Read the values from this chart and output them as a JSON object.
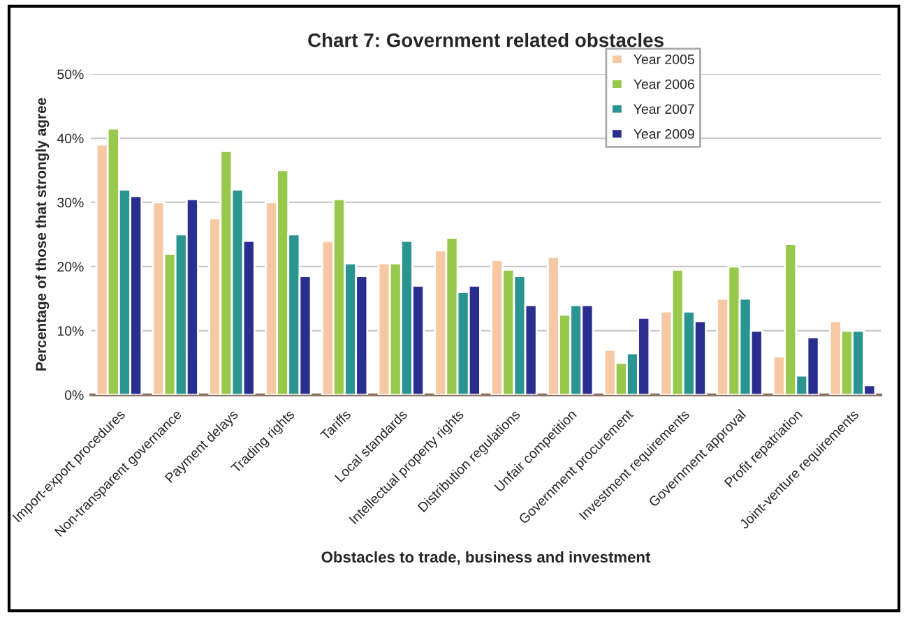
{
  "chart_data": {
    "type": "bar",
    "title": "Chart 7: Government related obstacles",
    "xlabel": "Obstacles to trade, business and investment",
    "ylabel": "Percentage of those that strongly agree",
    "categories": [
      "Import-export procedures",
      "Non-transparent governance",
      "Payment delays",
      "Trading rights",
      "Tariffs",
      "Local standards",
      "Intellectual property rights",
      "Distribution regulations",
      "Unfair competition",
      "Government procurement",
      "Investment requirements",
      "Government approval",
      "Profit repatriation",
      "Joint-venture requirements"
    ],
    "series": [
      {
        "name": "Year 2005",
        "color": "#f6c8a4",
        "values": [
          39,
          30,
          27.5,
          30,
          24,
          20.5,
          22.5,
          21,
          21.5,
          7,
          13,
          15,
          6,
          11.5
        ]
      },
      {
        "name": "Year 2006",
        "color": "#98c94c",
        "values": [
          41.5,
          22,
          38,
          35,
          30.5,
          20.5,
          24.5,
          19.5,
          12.5,
          5,
          19.5,
          20,
          23.5,
          10
        ]
      },
      {
        "name": "Year 2007",
        "color": "#2a9590",
        "values": [
          32,
          25,
          32,
          25,
          20.5,
          24,
          16,
          18.5,
          14,
          6.5,
          13,
          15,
          3,
          10
        ]
      },
      {
        "name": "Year 2009",
        "color": "#2a2f8f",
        "values": [
          31,
          30.5,
          24,
          18.5,
          18.5,
          17,
          17,
          14,
          14,
          12,
          11.5,
          10,
          9,
          1.5
        ]
      }
    ],
    "ylim": [
      0,
      50
    ],
    "yticks": [
      {
        "value": 0,
        "label": "0%"
      },
      {
        "value": 10,
        "label": "10%"
      },
      {
        "value": 20,
        "label": "20%"
      },
      {
        "value": 30,
        "label": "30%"
      },
      {
        "value": 40,
        "label": "40%"
      },
      {
        "value": 50,
        "label": "50%"
      }
    ],
    "grid": "y",
    "legend": "top right"
  }
}
